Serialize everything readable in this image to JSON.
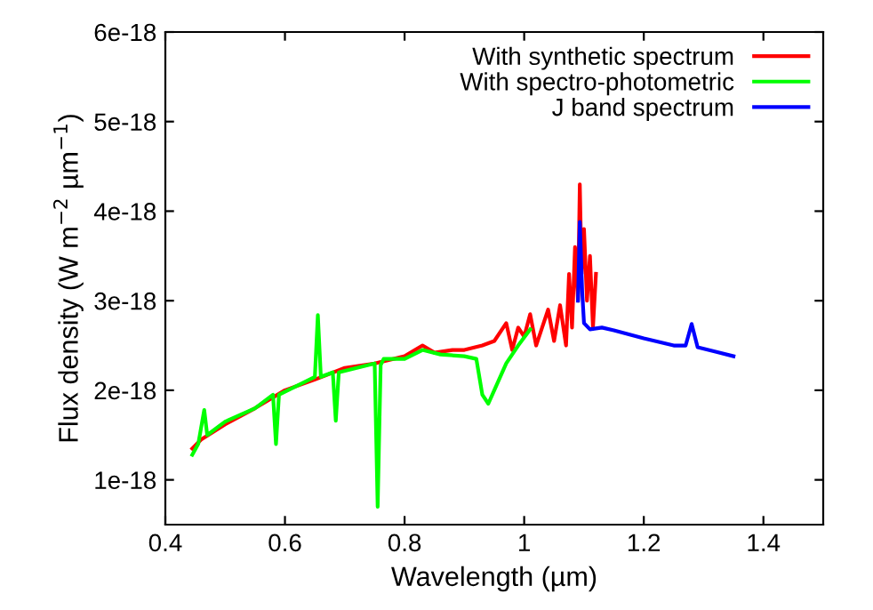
{
  "chart_data": {
    "type": "line",
    "xlabel": "Wavelength (µm)",
    "ylabel": "Flux density (W m$^{−2}$ µm$^{−1}$)",
    "xlim": [
      0.4,
      1.5
    ],
    "xticks": [
      0.4,
      0.6,
      0.8,
      1,
      1.2,
      1.4
    ],
    "ylim": [
      5e-19,
      6e-18
    ],
    "yticks": [
      {
        "value": 1e-18,
        "label": "1e-18"
      },
      {
        "value": 2e-18,
        "label": "2e-18"
      },
      {
        "value": 3e-18,
        "label": "3e-18"
      },
      {
        "value": 4e-18,
        "label": "4e-18"
      },
      {
        "value": 5e-18,
        "label": "5e-18"
      },
      {
        "value": 6e-18,
        "label": "6e-18"
      }
    ],
    "legend": "top right",
    "grid": false,
    "series": [
      {
        "name": "With synthetic spectrum",
        "color": "#ff0000",
        "x": [
          0.445,
          0.46,
          0.5,
          0.55,
          0.6,
          0.65,
          0.7,
          0.75,
          0.8,
          0.83,
          0.85,
          0.88,
          0.9,
          0.93,
          0.95,
          0.97,
          0.98,
          0.99,
          1.0,
          1.01,
          1.02,
          1.03,
          1.04,
          1.05,
          1.06,
          1.07,
          1.075,
          1.08,
          1.085,
          1.09,
          1.093,
          1.096,
          1.1,
          1.105,
          1.11,
          1.115,
          1.12
        ],
        "values": [
          1.35e-18,
          1.45e-18,
          1.62e-18,
          1.8e-18,
          2e-18,
          2.12e-18,
          2.25e-18,
          2.3e-18,
          2.38e-18,
          2.5e-18,
          2.42e-18,
          2.45e-18,
          2.45e-18,
          2.5e-18,
          2.55e-18,
          2.75e-18,
          2.45e-18,
          2.7e-18,
          2.6e-18,
          2.85e-18,
          2.5e-18,
          2.7e-18,
          2.9e-18,
          2.55e-18,
          2.95e-18,
          2.5e-18,
          3.3e-18,
          2.7e-18,
          3.6e-18,
          3e-18,
          4.3e-18,
          3.3e-18,
          3.8e-18,
          3e-18,
          3.5e-18,
          2.7e-18,
          3.3e-18
        ]
      },
      {
        "name": "With spectro-photometric",
        "color": "#00ff00",
        "x": [
          0.445,
          0.455,
          0.465,
          0.47,
          0.5,
          0.55,
          0.58,
          0.585,
          0.59,
          0.62,
          0.65,
          0.655,
          0.66,
          0.68,
          0.685,
          0.69,
          0.72,
          0.75,
          0.755,
          0.76,
          0.765,
          0.8,
          0.83,
          0.86,
          0.9,
          0.92,
          0.93,
          0.94,
          0.95,
          0.97,
          0.99,
          1.01
        ],
        "values": [
          1.28e-18,
          1.4e-18,
          1.78e-18,
          1.5e-18,
          1.65e-18,
          1.8e-18,
          1.95e-18,
          1.4e-18,
          1.95e-18,
          2.05e-18,
          2.15e-18,
          2.84e-18,
          2.15e-18,
          2.2e-18,
          1.66e-18,
          2.2e-18,
          2.25e-18,
          2.3e-18,
          7e-19,
          2.28e-18,
          2.35e-18,
          2.35e-18,
          2.45e-18,
          2.4e-18,
          2.38e-18,
          2.35e-18,
          1.95e-18,
          1.85e-18,
          2e-18,
          2.3e-18,
          2.5e-18,
          2.68e-18
        ]
      },
      {
        "name": "J band spectrum",
        "color": "#0000ff",
        "x": [
          1.09,
          1.093,
          1.097,
          1.1,
          1.11,
          1.13,
          1.15,
          1.2,
          1.25,
          1.27,
          1.28,
          1.29,
          1.32,
          1.35
        ],
        "values": [
          3e-18,
          3.88e-18,
          3.1e-18,
          2.75e-18,
          2.68e-18,
          2.7e-18,
          2.67e-18,
          2.58e-18,
          2.5e-18,
          2.5e-18,
          2.74e-18,
          2.48e-18,
          2.43e-18,
          2.38e-18
        ]
      }
    ]
  }
}
